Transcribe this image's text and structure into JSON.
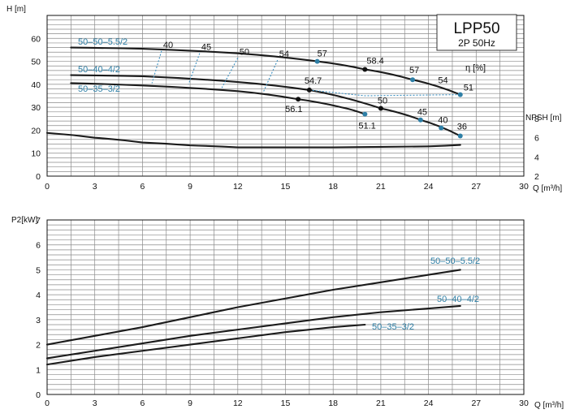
{
  "chart_data": [
    {
      "type": "line",
      "title": "LPP50",
      "subtitle": "2P  50Hz",
      "xlabel": "Q [m³/h]",
      "ylabel": "H [m]",
      "y2label": "NPSH [m]",
      "efficiency_label": "η [%]",
      "xlim": [
        0,
        30
      ],
      "ylim": [
        0,
        70
      ],
      "y2lim": [
        2,
        8
      ],
      "xticks": [
        "0",
        "3",
        "6",
        "9",
        "12",
        "15",
        "18",
        "21",
        "24",
        "27",
        "30"
      ],
      "yticks": [
        "0",
        "10",
        "20",
        "30",
        "40",
        "50",
        "60"
      ],
      "y2ticks": [
        "2",
        "4",
        "6",
        "8"
      ],
      "grid": true,
      "series": [
        {
          "name": "50–50–5.5/2",
          "x": [
            1.5,
            6,
            12,
            17,
            20,
            23,
            26
          ],
          "y": [
            56,
            55.5,
            53.5,
            50,
            46.5,
            42,
            35.5
          ]
        },
        {
          "name": "50–40–4/2",
          "x": [
            1.5,
            6,
            12,
            16.5,
            21,
            23.5,
            26
          ],
          "y": [
            44,
            43.5,
            41,
            37.5,
            29.5,
            24.5,
            17.5
          ]
        },
        {
          "name": "50–35–3/2",
          "x": [
            1.5,
            6,
            12,
            15.8,
            18.5,
            20
          ],
          "y": [
            40.5,
            39.5,
            37,
            33.5,
            30,
            27
          ]
        },
        {
          "name": "NPSH",
          "x": [
            0,
            3,
            6,
            9,
            12,
            15,
            18,
            21,
            24,
            26
          ],
          "y": [
            6.5,
            6,
            5.5,
            5.2,
            5.0,
            5.0,
            5.0,
            5.05,
            5.1,
            5.25
          ]
        }
      ],
      "efficiency_points": [
        {
          "label": "40",
          "x": 7.2,
          "y": 54.5
        },
        {
          "label": "45",
          "x": 9.6,
          "y": 53.5
        },
        {
          "label": "50",
          "x": 12.0,
          "y": 51.5
        },
        {
          "label": "54",
          "x": 14.5,
          "y": 50.5
        },
        {
          "label": "57",
          "x": 17.0,
          "y": 50.0,
          "marked": true
        },
        {
          "label": "58.4",
          "x": 20.0,
          "y": 46.5,
          "marked": true
        },
        {
          "label": "57",
          "x": 23.0,
          "y": 42.0,
          "marked": true
        },
        {
          "label": "54",
          "x": 24.5,
          "y": 39.5
        },
        {
          "label": "51",
          "x": 26.0,
          "y": 35.5,
          "marked": true
        },
        {
          "label": "54.7",
          "x": 16.5,
          "y": 37.5,
          "marked": true
        },
        {
          "label": "50",
          "x": 21.0,
          "y": 29.5,
          "marked": true
        },
        {
          "label": "45",
          "x": 23.5,
          "y": 24.5,
          "marked": true
        },
        {
          "label": "40",
          "x": 24.8,
          "y": 21.0,
          "marked": true
        },
        {
          "label": "36",
          "x": 26.0,
          "y": 17.5,
          "marked": true
        },
        {
          "label": "56.1",
          "x": 15.8,
          "y": 33.5,
          "marked": true
        },
        {
          "label": "51.1",
          "x": 20.0,
          "y": 27.0,
          "marked": true
        }
      ]
    },
    {
      "type": "line",
      "xlabel": "Q [m³/h]",
      "ylabel": "P2[kW]",
      "xlim": [
        0,
        30
      ],
      "ylim": [
        0,
        7
      ],
      "xticks": [
        "0",
        "3",
        "6",
        "9",
        "12",
        "15",
        "18",
        "21",
        "24",
        "27",
        "30"
      ],
      "yticks": [
        "0",
        "1",
        "2",
        "3",
        "4",
        "5",
        "6",
        "7"
      ],
      "grid": true,
      "series": [
        {
          "name": "50–50–5.5/2",
          "x": [
            0,
            3,
            6,
            9,
            12,
            15,
            18,
            21,
            24,
            26
          ],
          "y": [
            2.0,
            2.35,
            2.7,
            3.1,
            3.5,
            3.85,
            4.2,
            4.5,
            4.8,
            5.0
          ]
        },
        {
          "name": "50–40–4/2",
          "x": [
            0,
            3,
            6,
            9,
            12,
            15,
            18,
            21,
            24,
            26
          ],
          "y": [
            1.45,
            1.75,
            2.05,
            2.35,
            2.6,
            2.85,
            3.1,
            3.3,
            3.45,
            3.55
          ]
        },
        {
          "name": "50–35–3/2",
          "x": [
            0,
            3,
            6,
            9,
            12,
            15,
            18,
            20
          ],
          "y": [
            1.2,
            1.5,
            1.75,
            2.0,
            2.25,
            2.5,
            2.7,
            2.8
          ]
        }
      ]
    }
  ]
}
